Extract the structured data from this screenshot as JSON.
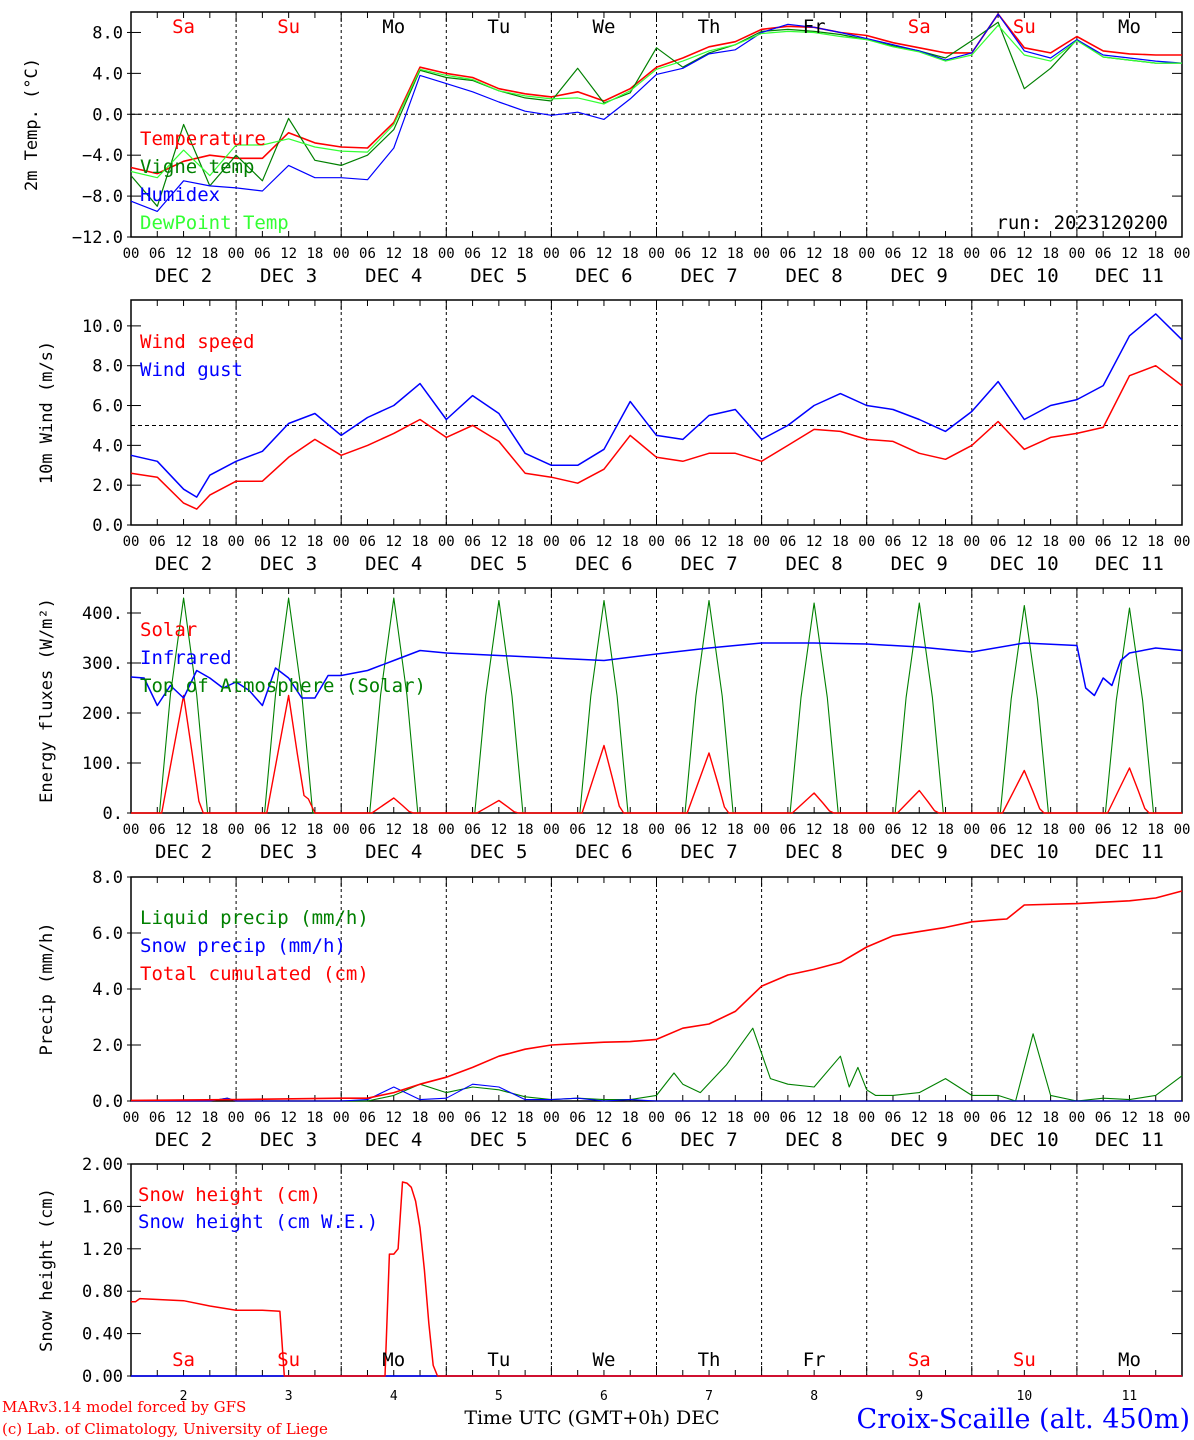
{
  "title": "Croix-Scaille (alt. 450m)",
  "credit_line1": "MARv3.14 model forced by GFS",
  "credit_line2": "(c) Lab. of Climatology, University of Liege",
  "xaxis_label": "Time UTC (GMT+0h) DEC",
  "colors": {
    "red": "#ff0000",
    "green": "#008000",
    "blue": "#0000ff",
    "lime": "#33ff33",
    "black": "#000000"
  },
  "hour_ticks": [
    "00",
    "06",
    "12",
    "18"
  ],
  "days": [
    {
      "dow": "Sa",
      "date": "DEC  2",
      "num": "2",
      "weekend": true
    },
    {
      "dow": "Su",
      "date": "DEC  3",
      "num": "3",
      "weekend": true
    },
    {
      "dow": "Mo",
      "date": "DEC  4",
      "num": "4",
      "weekend": false
    },
    {
      "dow": "Tu",
      "date": "DEC  5",
      "num": "5",
      "weekend": false
    },
    {
      "dow": "We",
      "date": "DEC  6",
      "num": "6",
      "weekend": false
    },
    {
      "dow": "Th",
      "date": "DEC  7",
      "num": "7",
      "weekend": false
    },
    {
      "dow": "Fr",
      "date": "DEC  8",
      "num": "8",
      "weekend": false
    },
    {
      "dow": "Sa",
      "date": "DEC  9",
      "num": "9",
      "weekend": true
    },
    {
      "dow": "Su",
      "date": "DEC 10",
      "num": "10",
      "weekend": true
    },
    {
      "dow": "Mo",
      "date": "DEC 11",
      "num": "11",
      "weekend": false
    }
  ],
  "chart_data": [
    {
      "type": "line",
      "ylabel": "2m Temp. (°C)",
      "ylim": [
        -12,
        10
      ],
      "yticks": [
        8,
        4,
        0,
        -4,
        -8,
        -12
      ],
      "ytick_labels": [
        "8.0",
        "4.0",
        "0.0",
        "−4.0",
        "−8.0",
        "−12.0"
      ],
      "dashed_y": 0,
      "annotation": "run: 2023120200",
      "x": [
        0,
        6,
        12,
        18,
        24,
        30,
        36,
        42,
        48,
        54,
        60,
        66,
        72,
        78,
        84,
        90,
        96,
        102,
        108,
        114,
        120,
        126,
        132,
        138,
        144,
        150,
        156,
        162,
        168,
        174,
        180,
        186,
        192,
        198,
        204,
        210,
        216,
        222,
        228,
        234,
        240
      ],
      "series": [
        {
          "name": "Temperature",
          "color": "red",
          "values": [
            -5.2,
            -5.8,
            -4.6,
            -4.0,
            -4.3,
            -4.3,
            -1.8,
            -2.8,
            -3.2,
            -3.3,
            -0.8,
            4.6,
            4.0,
            3.6,
            2.5,
            2.0,
            1.7,
            2.2,
            1.3,
            2.5,
            4.6,
            5.5,
            6.6,
            7.1,
            8.3,
            8.6,
            8.5,
            8.0,
            7.7,
            7.0,
            6.5,
            6.0,
            6.0,
            9.8,
            6.5,
            6.0,
            7.6,
            6.2,
            5.9,
            5.8,
            5.8
          ]
        },
        {
          "name": "Vigne temp",
          "color": "green",
          "values": [
            -6.0,
            -9.0,
            -1.0,
            -7.0,
            -4.0,
            -6.5,
            -0.4,
            -4.5,
            -5.0,
            -4.0,
            -1.5,
            4.3,
            3.6,
            3.3,
            2.3,
            1.6,
            1.3,
            4.5,
            1.1,
            2.1,
            6.5,
            4.6,
            6.0,
            6.8,
            8.1,
            8.3,
            8.1,
            7.8,
            7.3,
            6.7,
            6.2,
            5.5,
            7.2,
            9.0,
            2.5,
            4.5,
            7.3,
            5.6,
            5.3,
            5.0,
            5.0
          ]
        },
        {
          "name": "Humidex",
          "color": "blue",
          "values": [
            -8.5,
            -9.5,
            -6.5,
            -7.0,
            -7.2,
            -7.5,
            -5.0,
            -6.2,
            -6.2,
            -6.4,
            -3.3,
            3.8,
            3.0,
            2.2,
            1.2,
            0.3,
            -0.1,
            0.2,
            -0.5,
            1.5,
            3.9,
            4.5,
            5.9,
            6.3,
            8.0,
            8.8,
            8.5,
            8.0,
            7.4,
            6.8,
            6.2,
            5.3,
            6.0,
            9.8,
            6.2,
            5.5,
            7.3,
            5.8,
            5.5,
            5.2,
            5.0
          ]
        },
        {
          "name": "DewPoint Temp",
          "color": "lime",
          "values": [
            -5.6,
            -6.2,
            -3.5,
            -6.0,
            -3.0,
            -3.0,
            -2.4,
            -3.2,
            -3.6,
            -3.7,
            -1.0,
            4.4,
            3.8,
            3.4,
            2.3,
            1.8,
            1.5,
            1.6,
            1.0,
            2.3,
            4.4,
            5.2,
            6.2,
            6.8,
            7.9,
            8.1,
            8.0,
            7.6,
            7.3,
            6.6,
            6.1,
            5.2,
            5.8,
            8.7,
            5.8,
            5.2,
            7.2,
            5.6,
            5.3,
            5.0,
            5.0
          ]
        }
      ]
    },
    {
      "type": "line",
      "ylabel": "10m Wind (m/s)",
      "ylim": [
        0,
        11.3
      ],
      "yticks": [
        0,
        2,
        4,
        6,
        8,
        10
      ],
      "ytick_labels": [
        "0.0",
        "2.0",
        "4.0",
        "6.0",
        "8.0",
        "10.0"
      ],
      "dashed_y": 5,
      "x": [
        0,
        6,
        12,
        15,
        18,
        24,
        30,
        36,
        42,
        48,
        54,
        60,
        66,
        72,
        78,
        84,
        90,
        96,
        102,
        108,
        114,
        120,
        126,
        132,
        138,
        144,
        150,
        156,
        162,
        168,
        174,
        180,
        186,
        192,
        198,
        204,
        210,
        216,
        222,
        228,
        234,
        240
      ],
      "series": [
        {
          "name": "Wind speed",
          "color": "red",
          "values": [
            2.6,
            2.4,
            1.1,
            0.8,
            1.5,
            2.2,
            2.2,
            3.4,
            4.3,
            3.5,
            4.0,
            4.6,
            5.3,
            4.4,
            5.0,
            4.2,
            2.6,
            2.4,
            2.1,
            2.8,
            4.5,
            3.4,
            3.2,
            3.6,
            3.6,
            3.2,
            4.0,
            4.8,
            4.7,
            4.3,
            4.2,
            3.6,
            3.3,
            4.0,
            5.2,
            3.8,
            4.4,
            4.6,
            4.9,
            7.5,
            8.0,
            7.0
          ]
        },
        {
          "name": "Wind gust",
          "color": "blue",
          "values": [
            3.5,
            3.2,
            1.8,
            1.4,
            2.5,
            3.2,
            3.7,
            5.1,
            5.6,
            4.5,
            5.4,
            6.0,
            7.1,
            5.3,
            6.5,
            5.6,
            3.6,
            3.0,
            3.0,
            3.8,
            6.2,
            4.5,
            4.3,
            5.5,
            5.8,
            4.3,
            5.0,
            6.0,
            6.6,
            6.0,
            5.8,
            5.3,
            4.7,
            5.7,
            7.2,
            5.3,
            6.0,
            6.3,
            7.0,
            9.5,
            10.6,
            9.3
          ]
        }
      ]
    },
    {
      "type": "line",
      "ylabel": "Energy fluxes (W/m²)",
      "ylim": [
        0,
        450
      ],
      "yticks": [
        0,
        100,
        200,
        300,
        400
      ],
      "ytick_labels": [
        "0.",
        "100.",
        "200.",
        "300.",
        "400."
      ],
      "legend": [
        "Solar",
        "Infrared",
        "Top of Atmosphere (Solar)"
      ],
      "infrared": {
        "x": [
          0,
          3,
          6,
          9,
          12,
          15,
          18,
          21,
          24,
          27,
          30,
          33,
          36,
          39,
          42,
          45,
          48,
          54,
          60,
          66,
          72,
          84,
          96,
          108,
          120,
          132,
          144,
          156,
          168,
          180,
          192,
          204,
          216,
          218,
          220,
          222,
          224,
          226,
          228,
          234,
          240
        ],
        "values": [
          272,
          270,
          215,
          255,
          230,
          285,
          270,
          250,
          262,
          245,
          215,
          290,
          270,
          230,
          230,
          275,
          275,
          285,
          305,
          325,
          320,
          315,
          310,
          305,
          318,
          330,
          340,
          340,
          338,
          332,
          322,
          340,
          335,
          250,
          235,
          270,
          255,
          305,
          320,
          330,
          325
        ]
      },
      "daily_toa_peaks": [
        430,
        430,
        430,
        425,
        425,
        425,
        420,
        420,
        415,
        410
      ],
      "daily_solar_peaks": [
        235,
        235,
        30,
        25,
        135,
        120,
        40,
        45,
        85,
        90
      ],
      "daily_solar_secondary": [
        0,
        35,
        0,
        0,
        0,
        0,
        0,
        0,
        0,
        0
      ]
    },
    {
      "type": "line",
      "ylabel": "Precip (mm/h)",
      "ylim": [
        0,
        8
      ],
      "yticks": [
        0,
        2,
        4,
        6,
        8
      ],
      "ytick_labels": [
        "0.0",
        "2.0",
        "4.0",
        "6.0",
        "8.0"
      ],
      "legend": [
        "Liquid precip (mm/h)",
        "Snow precip (mm/h)",
        "Total cumulated (cm)"
      ],
      "series": [
        {
          "name": "Total cumulated (cm)",
          "color": "red",
          "x": [
            0,
            24,
            48,
            54,
            60,
            66,
            72,
            78,
            84,
            90,
            96,
            102,
            108,
            114,
            120,
            126,
            132,
            138,
            144,
            150,
            156,
            162,
            168,
            174,
            180,
            186,
            192,
            198,
            200,
            204,
            216,
            222,
            228,
            234,
            240
          ],
          "values": [
            0.02,
            0.05,
            0.1,
            0.1,
            0.3,
            0.6,
            0.85,
            1.2,
            1.6,
            1.85,
            2.0,
            2.05,
            2.1,
            2.12,
            2.2,
            2.6,
            2.75,
            3.2,
            4.1,
            4.5,
            4.7,
            4.95,
            5.5,
            5.9,
            6.05,
            6.2,
            6.4,
            6.48,
            6.5,
            7.0,
            7.05,
            7.1,
            7.15,
            7.25,
            7.5
          ]
        },
        {
          "name": "Liquid precip (mm/h)",
          "color": "green",
          "x": [
            0,
            18,
            22,
            24,
            48,
            54,
            60,
            66,
            72,
            78,
            84,
            90,
            96,
            102,
            108,
            114,
            120,
            124,
            126,
            130,
            136,
            142,
            146,
            150,
            156,
            162,
            164,
            166,
            168,
            170,
            174,
            180,
            186,
            192,
            198,
            202,
            206,
            210,
            216,
            222,
            228,
            234,
            240
          ],
          "values": [
            0,
            0,
            0.1,
            0,
            0,
            0,
            0.2,
            0.6,
            0.3,
            0.5,
            0.4,
            0.15,
            0.05,
            0.1,
            0.05,
            0.05,
            0.2,
            1.0,
            0.6,
            0.3,
            1.3,
            2.6,
            0.8,
            0.6,
            0.5,
            1.6,
            0.5,
            1.2,
            0.4,
            0.2,
            0.2,
            0.3,
            0.8,
            0.2,
            0.2,
            0,
            2.4,
            0.2,
            0,
            0.1,
            0.05,
            0.2,
            0.9
          ]
        },
        {
          "name": "Snow precip (mm/h)",
          "color": "blue",
          "x": [
            0,
            18,
            22,
            24,
            48,
            54,
            60,
            66,
            72,
            78,
            84,
            90,
            96,
            102,
            108,
            114,
            120,
            240
          ],
          "values": [
            0,
            0,
            0.1,
            0,
            0,
            0.05,
            0.5,
            0.05,
            0.1,
            0.6,
            0.5,
            0.05,
            0.05,
            0.1,
            0,
            0.05,
            0,
            0
          ]
        }
      ]
    },
    {
      "type": "line",
      "ylabel": "Snow height (cm)",
      "ylim": [
        0,
        2
      ],
      "yticks": [
        0,
        0.4,
        0.8,
        1.2,
        1.6,
        2.0
      ],
      "ytick_labels": [
        "0.00",
        "0.40",
        "0.80",
        "1.20",
        "1.60",
        "2.00"
      ],
      "legend": [
        "Snow height (cm)",
        "Snow height (cm W.E.)"
      ],
      "series": [
        {
          "name": "Snow height (cm)",
          "color": "red",
          "x": [
            0,
            1,
            2,
            12,
            18,
            24,
            30,
            34,
            35,
            58,
            59,
            60,
            61,
            62,
            63,
            64,
            65,
            66,
            67,
            68,
            69,
            70,
            240
          ],
          "values": [
            0.7,
            0.7,
            0.73,
            0.71,
            0.66,
            0.62,
            0.62,
            0.61,
            0,
            0,
            1.15,
            1.15,
            1.2,
            1.83,
            1.82,
            1.78,
            1.65,
            1.4,
            1.0,
            0.5,
            0.1,
            0,
            0
          ]
        },
        {
          "name": "Snow height (cm W.E.)",
          "color": "blue",
          "x": [
            0,
            240
          ],
          "values": [
            0,
            0
          ]
        }
      ]
    }
  ]
}
